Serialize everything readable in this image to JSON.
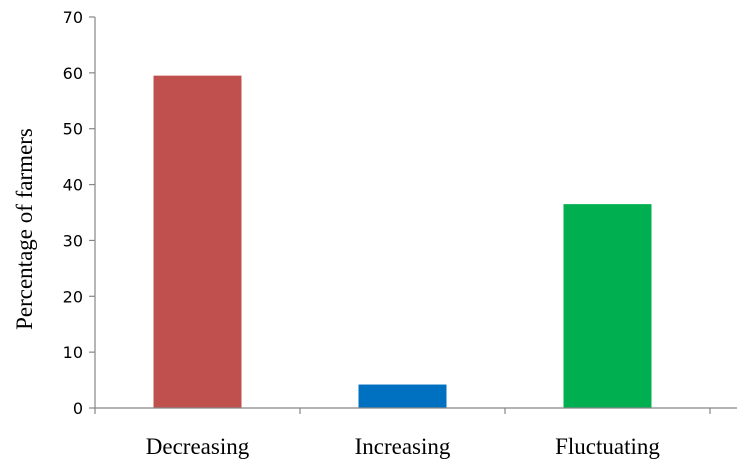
{
  "chart_data": {
    "type": "bar",
    "title": "",
    "xlabel": "",
    "ylabel": "Percentage  of farmers",
    "categories": [
      "Decreasing",
      "Increasing",
      "Fluctuating"
    ],
    "values": [
      59.5,
      4.2,
      36.5
    ],
    "colors": [
      "#C0504D",
      "#0070C0",
      "#00B050"
    ],
    "ylim": [
      0,
      70
    ],
    "yticks": [
      0,
      10,
      20,
      30,
      40,
      50,
      60,
      70
    ],
    "grid": false,
    "legend": "none"
  }
}
